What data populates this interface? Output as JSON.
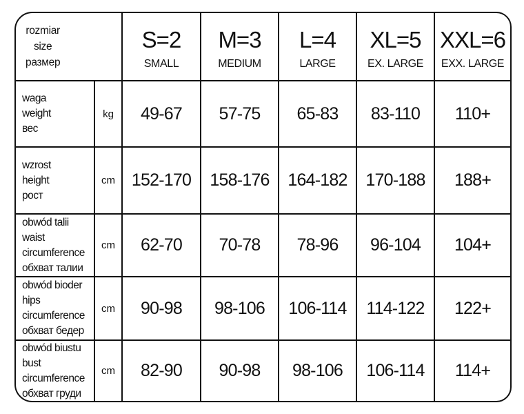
{
  "corner": [
    "rozmiar",
    "size",
    "размер"
  ],
  "sizes": [
    {
      "code": "S=2",
      "name": "SMALL"
    },
    {
      "code": "M=3",
      "name": "MEDIUM"
    },
    {
      "code": "L=4",
      "name": "LARGE"
    },
    {
      "code": "XL=5",
      "name": "EX. LARGE"
    },
    {
      "code": "XXL=6",
      "name": "EXX. LARGE"
    }
  ],
  "rows": [
    {
      "label": [
        "waga",
        "weight",
        "вес"
      ],
      "unit": "kg",
      "values": [
        "49-67",
        "57-75",
        "65-83",
        "83-110",
        "110+"
      ]
    },
    {
      "label": [
        "wzrost",
        "height",
        "рост"
      ],
      "unit": "cm",
      "values": [
        "152-170",
        "158-176",
        "164-182",
        "170-188",
        "188+"
      ]
    },
    {
      "label": [
        "obwód talii",
        "waist",
        "circumference",
        "обхват талии"
      ],
      "unit": "cm",
      "values": [
        "62-70",
        "70-78",
        "78-96",
        "96-104",
        "104+"
      ]
    },
    {
      "label": [
        "obwód bioder",
        "hips",
        "circumference",
        "обхват бедер"
      ],
      "unit": "cm",
      "values": [
        "90-98",
        "98-106",
        "106-114",
        "114-122",
        "122+"
      ]
    },
    {
      "label": [
        "obwód biustu",
        "bust",
        "circumference",
        "обхват груди"
      ],
      "unit": "cm",
      "values": [
        "82-90",
        "90-98",
        "98-106",
        "106-114",
        "114+"
      ]
    }
  ]
}
